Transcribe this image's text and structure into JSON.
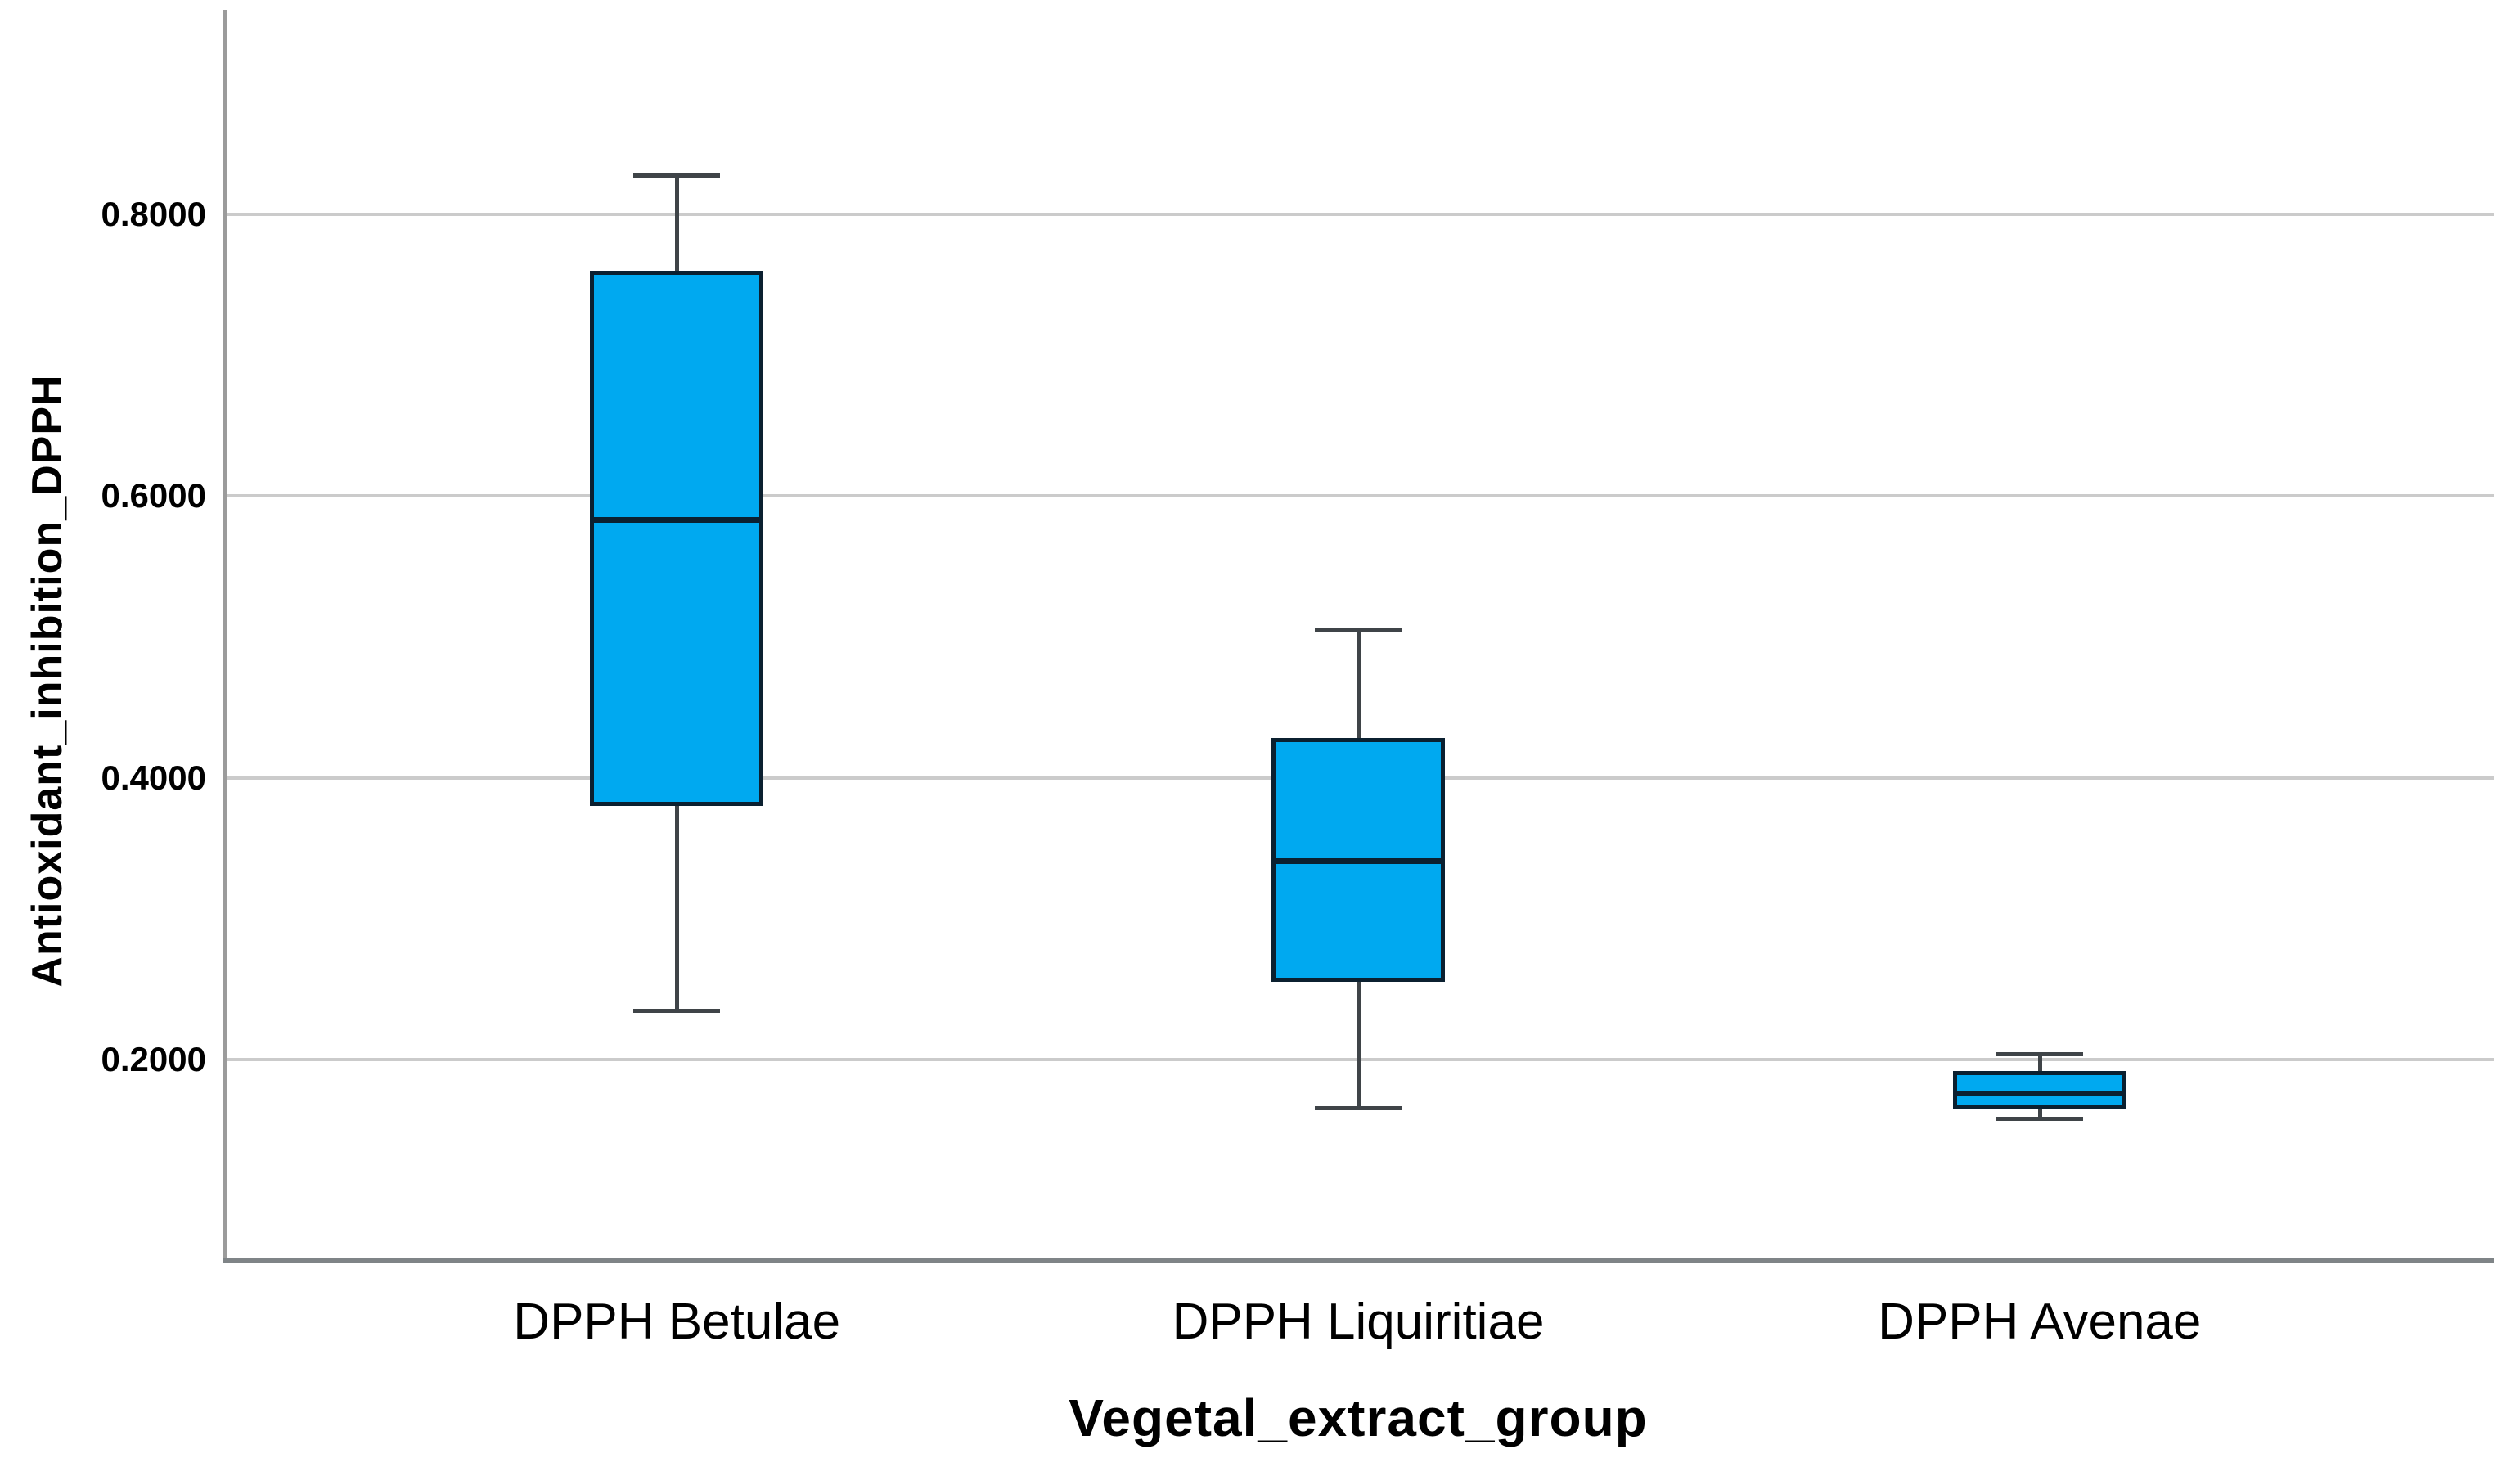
{
  "chart_data": {
    "type": "boxplot",
    "title": "",
    "xlabel": "Vegetal_extract_group",
    "ylabel": "Antioxidant_inhibition_DPPH",
    "categories": [
      "DPPH Betulae",
      "DPPH Liquiritiae",
      "DPPH Avenae"
    ],
    "series": [
      {
        "name": "DPPH Betulae",
        "whisker_low": 0.235,
        "q1": 0.38,
        "median": 0.583,
        "q3": 0.76,
        "whisker_high": 0.828
      },
      {
        "name": "DPPH Liquiritiae",
        "whisker_low": 0.166,
        "q1": 0.255,
        "median": 0.341,
        "q3": 0.428,
        "whisker_high": 0.505
      },
      {
        "name": "DPPH Avenae",
        "whisker_low": 0.158,
        "q1": 0.165,
        "median": 0.176,
        "q3": 0.192,
        "whisker_high": 0.204
      }
    ],
    "ylim": [
      0.056,
      0.952
    ],
    "yticks": [
      0.2,
      0.4,
      0.6,
      0.8
    ],
    "ytick_labels": [
      "0.2000",
      "0.4000",
      "0.6000",
      "0.8000"
    ],
    "grid": "horizontal",
    "legend": "none",
    "colors": {
      "box_fill": "#00A9F0",
      "box_border": "#0B2030",
      "median": "#0B2030",
      "whisker": "#3F4448",
      "gridline": "#CBCBCB",
      "axis_left": "#9B9B9B",
      "axis_bottom": "#7F8487",
      "text": "#000000",
      "background": "#FFFFFF"
    }
  }
}
